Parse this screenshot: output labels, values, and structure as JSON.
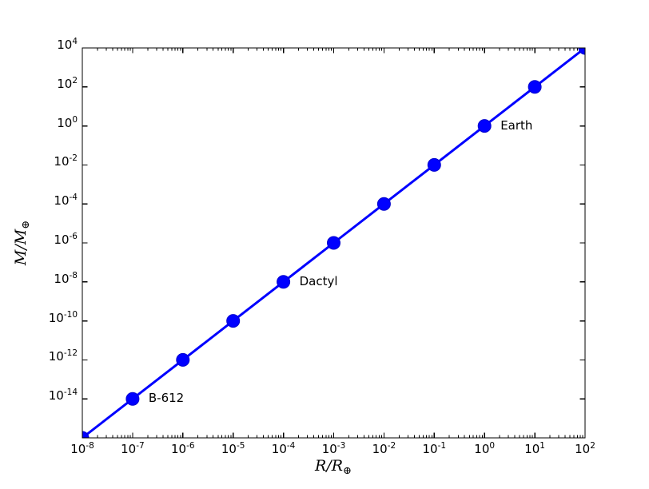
{
  "chart_data": {
    "type": "line",
    "title": "",
    "x_scale": "log",
    "y_scale": "log",
    "xlim": [
      1e-08,
      100
    ],
    "ylim": [
      1e-16,
      10000
    ],
    "grid": false,
    "legend": null,
    "x": [
      1e-08,
      1e-07,
      1e-06,
      1e-05,
      0.0001,
      0.001,
      0.01,
      0.1,
      1,
      10,
      100
    ],
    "y": [
      1e-16,
      1e-14,
      1e-12,
      1e-10,
      1e-08,
      1e-06,
      0.0001,
      0.01,
      1,
      100,
      10000
    ],
    "relation": "M = R^2 (slope 2 on log-log axes)",
    "tick_base": "10",
    "x_tick_exponents": [
      -8,
      -7,
      -6,
      -5,
      -4,
      -3,
      -2,
      -1,
      0,
      1,
      2
    ],
    "y_tick_exponents": [
      4,
      2,
      0,
      -2,
      -4,
      -6,
      -8,
      -10,
      -12,
      -14
    ],
    "axis_labels": {
      "x": {
        "text": "R/R",
        "subscript": "⊕"
      },
      "y": {
        "text": "M/M",
        "subscript": "⊕"
      }
    },
    "annotations": [
      {
        "text": "Earth",
        "x": 1,
        "y": 1
      },
      {
        "text": "Dactyl",
        "x": 0.0001,
        "y": 1e-08
      },
      {
        "text": "B-612",
        "x": 1e-07,
        "y": 1e-14
      }
    ],
    "colors": {
      "line": "#0000ff",
      "marker_fill": "#0000ff",
      "marker_edge": "#0000cd",
      "axis": "#000000",
      "text": "#000000",
      "background": "#ffffff"
    }
  }
}
